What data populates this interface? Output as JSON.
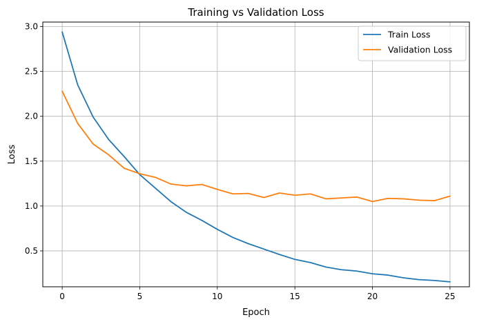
{
  "chart_data": {
    "type": "line",
    "title": "Training vs Validation Loss",
    "xlabel": "Epoch",
    "ylabel": "Loss",
    "xlim": [
      -1.25,
      26.25
    ],
    "ylim": [
      0.1,
      3.05
    ],
    "grid": true,
    "legend_position": "top-right",
    "x_ticks": [
      0,
      5,
      10,
      15,
      20,
      25
    ],
    "y_ticks": [
      0.5,
      1.0,
      1.5,
      2.0,
      2.5,
      3.0
    ],
    "x_tick_labels": [
      "0",
      "5",
      "10",
      "15",
      "20",
      "25"
    ],
    "y_tick_labels": [
      "0.5",
      "1.0",
      "1.5",
      "2.0",
      "2.5",
      "3.0"
    ],
    "x": [
      0,
      1,
      2,
      3,
      4,
      5,
      6,
      7,
      8,
      9,
      10,
      11,
      12,
      13,
      14,
      15,
      16,
      17,
      18,
      19,
      20,
      21,
      22,
      23,
      24,
      25
    ],
    "series": [
      {
        "name": "Train Loss",
        "color": "#1f77b4",
        "values": [
          2.94,
          2.35,
          1.99,
          1.74,
          1.55,
          1.35,
          1.2,
          1.05,
          0.93,
          0.84,
          0.74,
          0.65,
          0.58,
          0.52,
          0.46,
          0.405,
          0.37,
          0.32,
          0.29,
          0.275,
          0.245,
          0.23,
          0.2,
          0.18,
          0.17,
          0.155
        ]
      },
      {
        "name": "Validation Loss",
        "color": "#ff7f0e",
        "values": [
          2.28,
          1.92,
          1.69,
          1.57,
          1.42,
          1.36,
          1.32,
          1.245,
          1.225,
          1.24,
          1.185,
          1.135,
          1.14,
          1.095,
          1.145,
          1.12,
          1.135,
          1.08,
          1.09,
          1.1,
          1.05,
          1.085,
          1.08,
          1.065,
          1.06,
          1.11
        ]
      }
    ]
  }
}
